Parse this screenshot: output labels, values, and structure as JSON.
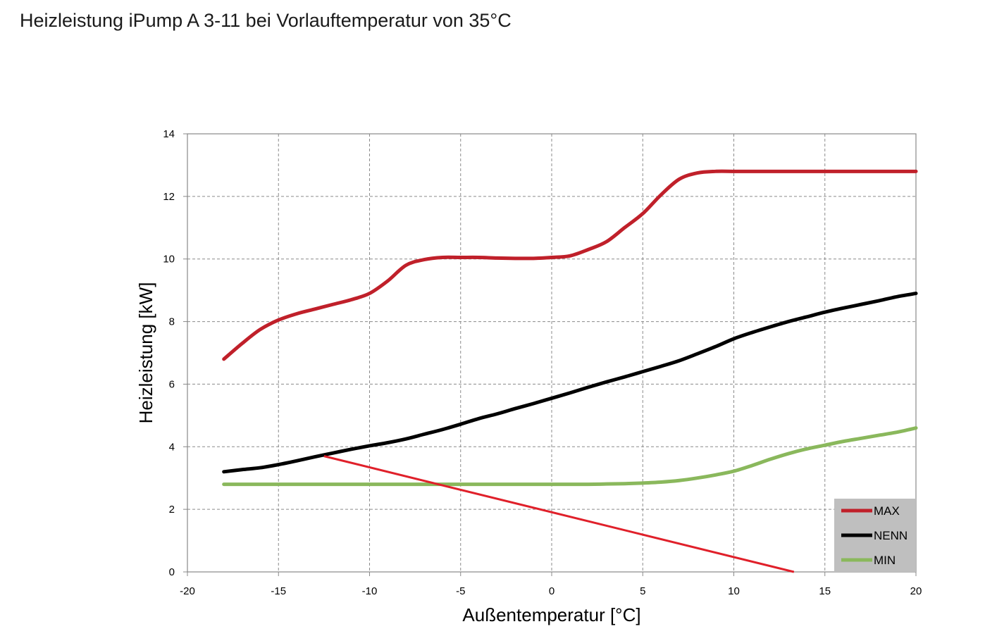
{
  "title": "Heizleistung iPump A 3-11 bei Vorlauftemperatur von 35°C",
  "chart_data": {
    "type": "line",
    "xlabel": "Außentemperatur [°C]",
    "ylabel": "Heizleistung [kW]",
    "xlim": [
      -20,
      20
    ],
    "ylim": [
      0,
      14
    ],
    "xticks": [
      -20,
      -15,
      -10,
      -5,
      0,
      5,
      10,
      15,
      20
    ],
    "yticks": [
      0,
      2,
      4,
      6,
      8,
      10,
      12,
      14
    ],
    "grid": true,
    "legend_position": "bottom-right",
    "series": [
      {
        "name": "MAX",
        "color": "#c0202a",
        "x": [
          -18,
          -17,
          -16,
          -15,
          -14,
          -13,
          -12,
          -11,
          -10,
          -9,
          -8,
          -7,
          -6,
          -5,
          -4,
          -3,
          -2,
          -1,
          0,
          1,
          2,
          3,
          4,
          5,
          6,
          7,
          8,
          9,
          10,
          11,
          12,
          13,
          14,
          15,
          16,
          17,
          18,
          19,
          20
        ],
        "y": [
          6.8,
          7.3,
          7.75,
          8.05,
          8.25,
          8.4,
          8.55,
          8.7,
          8.9,
          9.3,
          9.8,
          9.98,
          10.05,
          10.05,
          10.05,
          10.03,
          10.02,
          10.02,
          10.05,
          10.1,
          10.3,
          10.55,
          11.0,
          11.45,
          12.05,
          12.55,
          12.75,
          12.8,
          12.8,
          12.8,
          12.8,
          12.8,
          12.8,
          12.8,
          12.8,
          12.8,
          12.8,
          12.8,
          12.8
        ]
      },
      {
        "name": "NENN",
        "color": "#000000",
        "x": [
          -18,
          -17,
          -16,
          -15,
          -14,
          -13,
          -12,
          -11,
          -10,
          -9,
          -8,
          -7,
          -6,
          -5,
          -4,
          -3,
          -2,
          -1,
          0,
          1,
          2,
          3,
          4,
          5,
          6,
          7,
          8,
          9,
          10,
          11,
          12,
          13,
          14,
          15,
          16,
          17,
          18,
          19,
          20
        ],
        "y": [
          3.2,
          3.27,
          3.33,
          3.43,
          3.55,
          3.68,
          3.8,
          3.92,
          4.03,
          4.13,
          4.25,
          4.4,
          4.55,
          4.72,
          4.9,
          5.05,
          5.22,
          5.38,
          5.55,
          5.72,
          5.9,
          6.07,
          6.23,
          6.4,
          6.57,
          6.75,
          6.97,
          7.2,
          7.45,
          7.65,
          7.83,
          8.0,
          8.15,
          8.3,
          8.43,
          8.55,
          8.67,
          8.8,
          8.9
        ]
      },
      {
        "name": "MIN",
        "color": "#8ab85c",
        "x": [
          -18,
          -15,
          -10,
          -5,
          0,
          2,
          3,
          4,
          5,
          6,
          7,
          8,
          9,
          10,
          11,
          12,
          13,
          14,
          15,
          16,
          17,
          18,
          19,
          20
        ],
        "y": [
          2.8,
          2.8,
          2.8,
          2.8,
          2.8,
          2.8,
          2.81,
          2.82,
          2.84,
          2.87,
          2.92,
          3.0,
          3.1,
          3.22,
          3.4,
          3.6,
          3.78,
          3.93,
          4.05,
          4.17,
          4.27,
          4.37,
          4.47,
          4.6
        ]
      }
    ],
    "annotations": [
      {
        "type": "line",
        "color": "#e0202a",
        "x": [
          -12.5,
          13.3
        ],
        "y": [
          3.7,
          0.0
        ]
      }
    ]
  }
}
